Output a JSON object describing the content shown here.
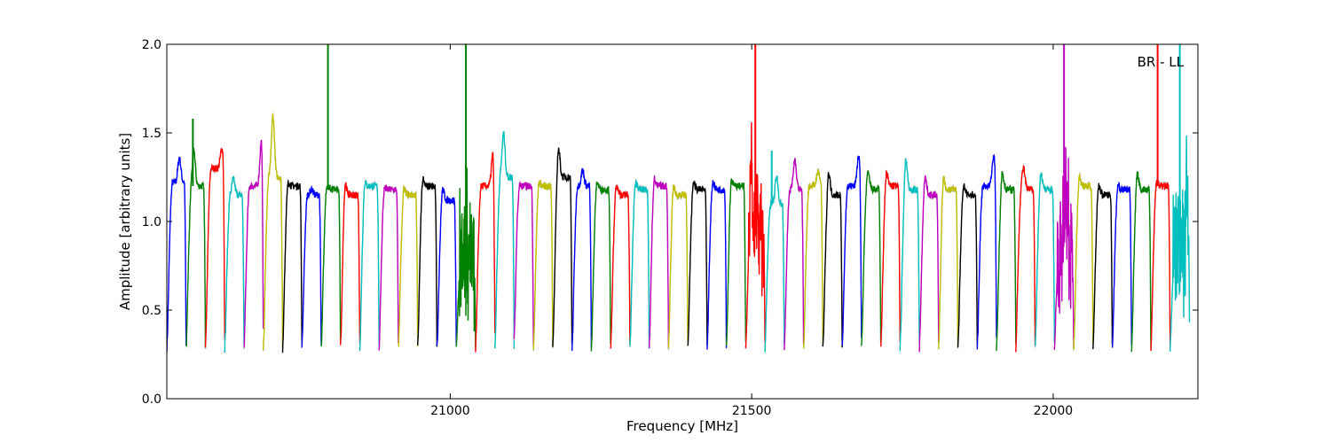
{
  "chart_data": {
    "type": "line",
    "title": "",
    "xlabel": "Frequency [MHz]",
    "ylabel": "Amplitude [arbitrary units]",
    "xlim": [
      20530,
      22240
    ],
    "ylim": [
      0.0,
      2.0
    ],
    "x_ticks": [
      21000,
      21500,
      22000
    ],
    "x_tick_labels": [
      "21000",
      "21500",
      "22000"
    ],
    "y_ticks": [
      0.0,
      0.5,
      1.0,
      1.5,
      2.0
    ],
    "y_tick_labels": [
      "0.0",
      "0.5",
      "1.0",
      "1.5",
      "2.0"
    ],
    "grid": false,
    "legend": "none",
    "annotation": {
      "text": "BR - LL",
      "placement": "top-right"
    },
    "background_color": "#c0c0c0",
    "color_cycle": [
      "#0000ff",
      "#008000",
      "#ff0000",
      "#00bfbf",
      "#bf00bf",
      "#bfbf00",
      "#000000"
    ],
    "channel_width_mhz": 32,
    "channel_start_mhz": 20530,
    "channels": [
      {
        "start": 20530,
        "level": 1.22,
        "peak": 1.36,
        "peak_pos": 0.65
      },
      {
        "start": 20562,
        "level": 1.2,
        "peak": 1.4,
        "peak_pos": 0.4,
        "spike": 1.58
      },
      {
        "start": 20594,
        "level": 1.3,
        "peak": 1.41,
        "peak_pos": 0.85
      },
      {
        "start": 20626,
        "level": 1.15,
        "peak": 1.24,
        "peak_pos": 0.45
      },
      {
        "start": 20658,
        "level": 1.2,
        "peak": 1.45,
        "peak_pos": 0.9
      },
      {
        "start": 20690,
        "level": 1.25,
        "peak": 1.6,
        "peak_pos": 0.5
      },
      {
        "start": 20722,
        "level": 1.2,
        "peak": 1.22,
        "peak_pos": 0.3
      },
      {
        "start": 20754,
        "level": 1.15,
        "peak": 1.18,
        "peak_pos": 0.5
      },
      {
        "start": 20786,
        "level": 1.18,
        "peak": 1.2,
        "peak_pos": 0.35,
        "spike": 2.0
      },
      {
        "start": 20818,
        "level": 1.15,
        "peak": 1.27,
        "peak_pos": 0.2
      },
      {
        "start": 20850,
        "level": 1.2,
        "peak": 1.25,
        "peak_pos": 0.2
      },
      {
        "start": 20882,
        "level": 1.18,
        "peak": 1.2,
        "peak_pos": 0.2
      },
      {
        "start": 20914,
        "level": 1.15,
        "peak": 1.18,
        "peak_pos": 0.3
      },
      {
        "start": 20946,
        "level": 1.2,
        "peak": 1.27,
        "peak_pos": 0.2
      },
      {
        "start": 20978,
        "level": 1.12,
        "peak": 1.18,
        "peak_pos": 0.3
      },
      {
        "start": 21010,
        "level": 0.85,
        "peak": 0.9,
        "peak_pos": 0.5,
        "noisy": true,
        "spike": 2.0
      },
      {
        "start": 21042,
        "level": 1.2,
        "peak": 1.38,
        "peak_pos": 0.9
      },
      {
        "start": 21074,
        "level": 1.25,
        "peak": 1.5,
        "peak_pos": 0.45
      },
      {
        "start": 21106,
        "level": 1.2,
        "peak": 1.29,
        "peak_pos": 0.1
      },
      {
        "start": 21138,
        "level": 1.2,
        "peak": 1.22,
        "peak_pos": 0.3
      },
      {
        "start": 21170,
        "level": 1.25,
        "peak": 1.41,
        "peak_pos": 0.3
      },
      {
        "start": 21202,
        "level": 1.2,
        "peak": 1.29,
        "peak_pos": 0.55
      },
      {
        "start": 21234,
        "level": 1.18,
        "peak": 1.22,
        "peak_pos": 0.3
      },
      {
        "start": 21266,
        "level": 1.15,
        "peak": 1.2,
        "peak_pos": 0.3
      },
      {
        "start": 21298,
        "level": 1.18,
        "peak": 1.22,
        "peak_pos": 0.3
      },
      {
        "start": 21330,
        "level": 1.2,
        "peak": 1.28,
        "peak_pos": 0.2
      },
      {
        "start": 21362,
        "level": 1.15,
        "peak": 1.24,
        "peak_pos": 0.2
      },
      {
        "start": 21394,
        "level": 1.18,
        "peak": 1.22,
        "peak_pos": 0.3
      },
      {
        "start": 21426,
        "level": 1.18,
        "peak": 1.22,
        "peak_pos": 0.3
      },
      {
        "start": 21458,
        "level": 1.2,
        "peak": 1.27,
        "peak_pos": 0.2
      },
      {
        "start": 21490,
        "level": 1.0,
        "peak": 1.22,
        "peak_pos": 0.3,
        "noisy": true,
        "spike": 2.0
      },
      {
        "start": 21522,
        "level": 1.1,
        "peak": 1.25,
        "peak_pos": 0.6,
        "spike": 1.4
      },
      {
        "start": 21554,
        "level": 1.18,
        "peak": 1.35,
        "peak_pos": 0.55
      },
      {
        "start": 21586,
        "level": 1.2,
        "peak": 1.29,
        "peak_pos": 0.75
      },
      {
        "start": 21618,
        "level": 1.15,
        "peak": 1.27,
        "peak_pos": 0.3
      },
      {
        "start": 21650,
        "level": 1.2,
        "peak": 1.37,
        "peak_pos": 0.85
      },
      {
        "start": 21682,
        "level": 1.18,
        "peak": 1.27,
        "peak_pos": 0.35
      },
      {
        "start": 21714,
        "level": 1.2,
        "peak": 1.27,
        "peak_pos": 0.3
      },
      {
        "start": 21746,
        "level": 1.18,
        "peak": 1.35,
        "peak_pos": 0.3
      },
      {
        "start": 21778,
        "level": 1.15,
        "peak": 1.25,
        "peak_pos": 0.3
      },
      {
        "start": 21810,
        "level": 1.18,
        "peak": 1.3,
        "peak_pos": 0.2
      },
      {
        "start": 21842,
        "level": 1.15,
        "peak": 1.2,
        "peak_pos": 0.3
      },
      {
        "start": 21874,
        "level": 1.2,
        "peak": 1.37,
        "peak_pos": 0.85
      },
      {
        "start": 21906,
        "level": 1.18,
        "peak": 1.27,
        "peak_pos": 0.3
      },
      {
        "start": 21938,
        "level": 1.18,
        "peak": 1.3,
        "peak_pos": 0.4
      },
      {
        "start": 21970,
        "level": 1.18,
        "peak": 1.27,
        "peak_pos": 0.3
      },
      {
        "start": 22002,
        "level": 0.9,
        "peak": 1.22,
        "peak_pos": 0.6,
        "noisy": true,
        "spike": 2.0
      },
      {
        "start": 22034,
        "level": 1.2,
        "peak": 1.25,
        "peak_pos": 0.3
      },
      {
        "start": 22066,
        "level": 1.15,
        "peak": 1.2,
        "peak_pos": 0.3
      },
      {
        "start": 22098,
        "level": 1.18,
        "peak": 1.2,
        "peak_pos": 0.3
      },
      {
        "start": 22130,
        "level": 1.18,
        "peak": 1.27,
        "peak_pos": 0.3
      },
      {
        "start": 22162,
        "level": 1.2,
        "peak": 1.22,
        "peak_pos": 0.3,
        "spike": 2.0
      },
      {
        "start": 22194,
        "level": 0.9,
        "peak": 1.2,
        "peak_pos": 0.9,
        "noisy": true,
        "spike": 2.0
      }
    ]
  }
}
